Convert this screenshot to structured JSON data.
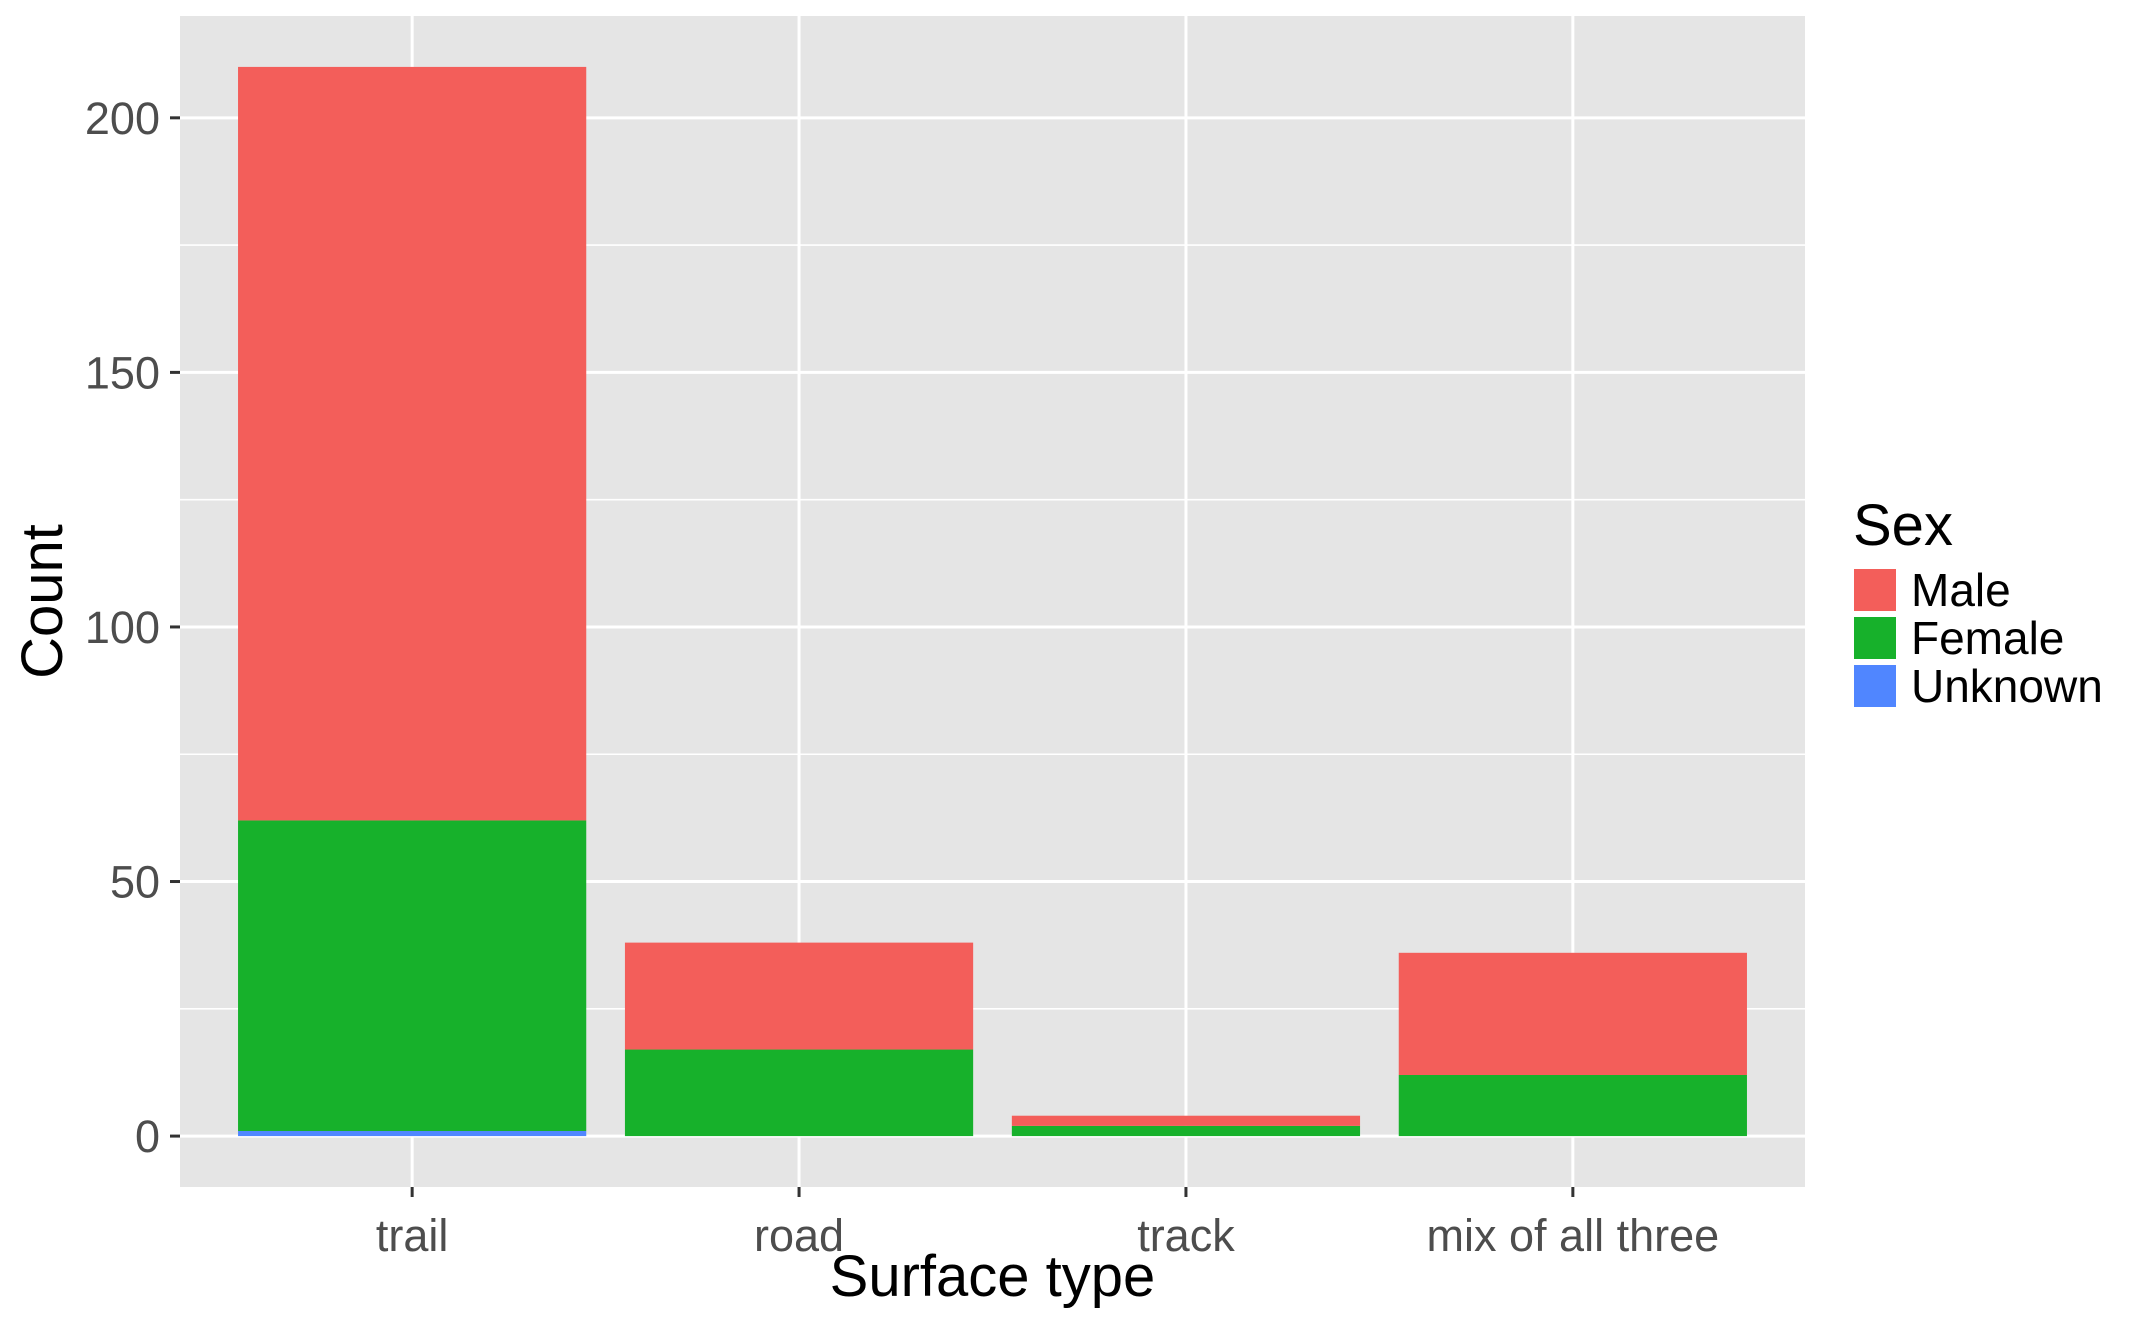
{
  "chart_data": {
    "type": "bar",
    "stacked": true,
    "categories": [
      "trail",
      "road",
      "track",
      "mix of all three"
    ],
    "series": [
      {
        "name": "Male",
        "color": "#F35E5A",
        "values": [
          148,
          21,
          2,
          24
        ]
      },
      {
        "name": "Female",
        "color": "#17B12B",
        "values": [
          61,
          17,
          2,
          12
        ]
      },
      {
        "name": "Unknown",
        "color": "#5086FF",
        "values": [
          1,
          0,
          0,
          0
        ]
      }
    ],
    "stack_order_bottom_to_top": [
      "Unknown",
      "Female",
      "Male"
    ],
    "xlabel": "Surface type",
    "ylabel": "Count",
    "ylim": [
      -10,
      220
    ],
    "yticks": [
      0,
      50,
      100,
      150,
      200
    ],
    "grid": true,
    "legend": {
      "title": "Sex",
      "position": "right"
    },
    "panel_background": "#E5E5E5",
    "grid_color": "#FFFFFF"
  }
}
